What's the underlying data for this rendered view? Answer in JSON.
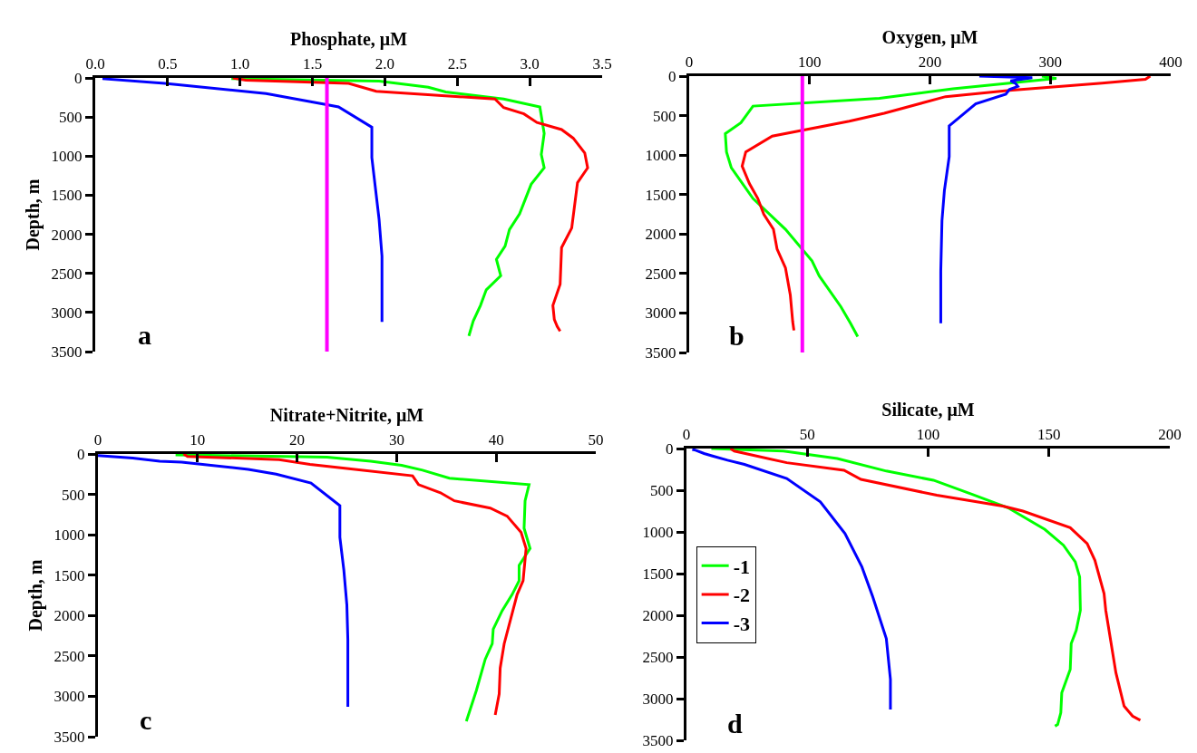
{
  "chart_data": [
    {
      "type": "line",
      "xlabel": "Phosphate, μM",
      "ylabel": "Depth, m",
      "xlim": [
        0,
        3.5
      ],
      "xticks": [
        {
          "value": 0,
          "label": "0.0"
        },
        0.5,
        {
          "value": 1,
          "label": "1.0"
        },
        1.5,
        {
          "value": 2,
          "label": "2.0"
        },
        2.5,
        {
          "value": 3,
          "label": "3.0"
        },
        3.5
      ],
      "ylim": [
        3500,
        0
      ],
      "yticks": [
        0,
        500,
        1000,
        1500,
        2000,
        2500,
        3000,
        3500
      ],
      "grid": false,
      "legend": false,
      "line_style": "solid",
      "marker": "none",
      "annotations": [
        "a"
      ],
      "ref_lines": [
        {
          "axis": "x",
          "value": 1.6,
          "color": "#ff00ff"
        }
      ],
      "series": [
        {
          "color": "#00ff00",
          "x": [
            0.94,
            1.96,
            2.3,
            2.42,
            2.82,
            3.07,
            3.1,
            3.08,
            3.1,
            3.01,
            2.93,
            2.86,
            2.83,
            2.77,
            2.8,
            2.7,
            2.66,
            2.61,
            2.58
          ],
          "values": [
            10,
            40,
            120,
            180,
            270,
            370,
            710,
            980,
            1150,
            1360,
            1740,
            1940,
            2150,
            2320,
            2530,
            2710,
            2910,
            3110,
            3300
          ]
        },
        {
          "color": "#ff0000",
          "x": [
            0.95,
            1.04,
            1.75,
            1.94,
            2.76,
            2.82,
            2.96,
            3.05,
            3.22,
            3.3,
            3.38,
            3.4,
            3.33,
            3.29,
            3.22,
            3.21,
            3.16,
            3.17,
            3.19,
            3.21
          ],
          "values": [
            0,
            30,
            70,
            170,
            270,
            380,
            460,
            570,
            660,
            770,
            960,
            1150,
            1340,
            1920,
            2170,
            2640,
            2910,
            3090,
            3180,
            3240
          ]
        },
        {
          "color": "#0000ff",
          "x": [
            0.05,
            0.48,
            1.18,
            1.59,
            1.68,
            1.91,
            1.91,
            1.96,
            1.98,
            1.98
          ],
          "values": [
            10,
            70,
            200,
            340,
            370,
            630,
            1020,
            1810,
            2280,
            3120
          ]
        }
      ]
    },
    {
      "type": "line",
      "xlabel": "Oxygen, μM",
      "xlim": [
        0,
        400
      ],
      "xticks": [
        0,
        100,
        200,
        300,
        400
      ],
      "ylim": [
        3500,
        0
      ],
      "yticks": [
        0,
        500,
        1000,
        1500,
        2000,
        2500,
        3000,
        3500
      ],
      "grid": false,
      "legend": false,
      "line_style": "solid",
      "marker": "none",
      "annotations": [
        "b"
      ],
      "ref_lines": [
        {
          "axis": "x",
          "value": 94,
          "color": "#ff00ff"
        }
      ],
      "series": [
        {
          "color": "#00ff00",
          "x": [
            293,
            305,
            266,
            219,
            158,
            53,
            43,
            30,
            31,
            35,
            53,
            80,
            102,
            108,
            126,
            134,
            140
          ],
          "values": [
            0,
            30,
            90,
            160,
            280,
            380,
            590,
            730,
            960,
            1160,
            1550,
            1940,
            2340,
            2530,
            2920,
            3130,
            3300
          ]
        },
        {
          "color": "#ff0000",
          "x": [
            383,
            379,
            343,
            266,
            213,
            162,
            133,
            69,
            47,
            44,
            50,
            57,
            62,
            70,
            73,
            80,
            84,
            86,
            87
          ],
          "values": [
            0,
            40,
            90,
            180,
            260,
            470,
            570,
            760,
            960,
            1140,
            1360,
            1550,
            1750,
            1940,
            2190,
            2430,
            2770,
            3110,
            3220
          ]
        },
        {
          "color": "#0000ff",
          "x": [
            241,
            285,
            267,
            271,
            273,
            266,
            263,
            238,
            216,
            216,
            212,
            210,
            209,
            209
          ],
          "values": [
            0,
            20,
            60,
            90,
            130,
            170,
            230,
            350,
            630,
            1020,
            1450,
            1830,
            2470,
            3130
          ]
        }
      ]
    },
    {
      "type": "line",
      "xlabel": "Nitrate+Nitrite, μM",
      "ylabel": "Depth, m",
      "xlim": [
        0,
        50
      ],
      "xticks": [
        0,
        10,
        20,
        30,
        40,
        50
      ],
      "ylim": [
        3500,
        0
      ],
      "yticks": [
        0,
        500,
        1000,
        1500,
        2000,
        2500,
        3000,
        3500
      ],
      "grid": false,
      "legend": false,
      "line_style": "solid",
      "marker": "none",
      "annotations": [
        "c"
      ],
      "series": [
        {
          "color": "#00ff00",
          "x": [
            7.8,
            23.0,
            27.4,
            30.5,
            32.6,
            35.3,
            43.3,
            42.9,
            42.8,
            43.4,
            42.3,
            42.3,
            41.6,
            40.6,
            39.7,
            39.6,
            38.9,
            38.0,
            37.0
          ],
          "values": [
            10,
            40,
            90,
            140,
            200,
            300,
            380,
            580,
            920,
            1170,
            1380,
            1570,
            1740,
            1940,
            2170,
            2350,
            2540,
            2930,
            3310
          ]
        },
        {
          "color": "#ff0000",
          "x": [
            8.6,
            9.0,
            18.2,
            21.3,
            25.0,
            31.6,
            32.2,
            34.4,
            35.8,
            39.4,
            41.1,
            42.5,
            43.0,
            42.7,
            42.1,
            40.8,
            40.4,
            40.3,
            39.9
          ],
          "values": [
            0,
            30,
            70,
            130,
            180,
            270,
            380,
            480,
            580,
            670,
            770,
            970,
            1170,
            1570,
            1740,
            2350,
            2650,
            2970,
            3230
          ]
        },
        {
          "color": "#0000ff",
          "x": [
            0,
            3.5,
            6.2,
            8.4,
            15.1,
            17.9,
            21.4,
            24.3,
            24.3,
            24.7,
            25.0,
            25.1,
            25.1
          ],
          "values": [
            20,
            50,
            90,
            100,
            190,
            250,
            360,
            640,
            1030,
            1440,
            1870,
            2300,
            3130
          ]
        }
      ]
    },
    {
      "type": "line",
      "xlabel": "Silicate, μM",
      "xlim": [
        0,
        200
      ],
      "xticks": [
        0,
        50,
        100,
        150,
        200
      ],
      "ylim": [
        3500,
        0
      ],
      "yticks": [
        0,
        500,
        1000,
        1500,
        2000,
        2500,
        3000,
        3500
      ],
      "grid": false,
      "legend": "left",
      "line_style": "solid",
      "marker": "none",
      "annotations": [
        "d"
      ],
      "series": [
        {
          "name": "-1",
          "color": "#00ff00",
          "x": [
            10.3,
            40.1,
            62.4,
            82.7,
            102.2,
            118.3,
            133.0,
            148.3,
            156.0,
            160.9,
            162.7,
            163.0,
            161.3,
            159.2,
            158.8,
            155.3,
            154.9,
            153.6,
            152.5
          ],
          "values": [
            0,
            30,
            120,
            270,
            380,
            550,
            710,
            970,
            1160,
            1360,
            1540,
            1940,
            2180,
            2340,
            2650,
            2930,
            3170,
            3310,
            3330
          ]
        },
        {
          "name": "-2",
          "color": "#ff0000",
          "x": [
            18.2,
            19.8,
            41.5,
            65.2,
            72.2,
            103.6,
            130.9,
            139.2,
            158.8,
            165.8,
            169.0,
            172.8,
            173.5,
            177.7,
            181.1,
            184.6,
            187.8
          ],
          "values": [
            0,
            30,
            170,
            260,
            370,
            560,
            690,
            750,
            950,
            1140,
            1340,
            1740,
            1940,
            2690,
            3090,
            3210,
            3260
          ]
        },
        {
          "name": "-3",
          "color": "#0000ff",
          "x": [
            2.4,
            3.8,
            7.3,
            10.8,
            17.0,
            24.0,
            41.5,
            55.4,
            65.6,
            72.6,
            77.1,
            82.7,
            84.4,
            84.4
          ],
          "values": [
            10,
            20,
            60,
            90,
            140,
            190,
            360,
            640,
            1020,
            1420,
            1780,
            2280,
            2770,
            3130
          ]
        }
      ]
    }
  ]
}
